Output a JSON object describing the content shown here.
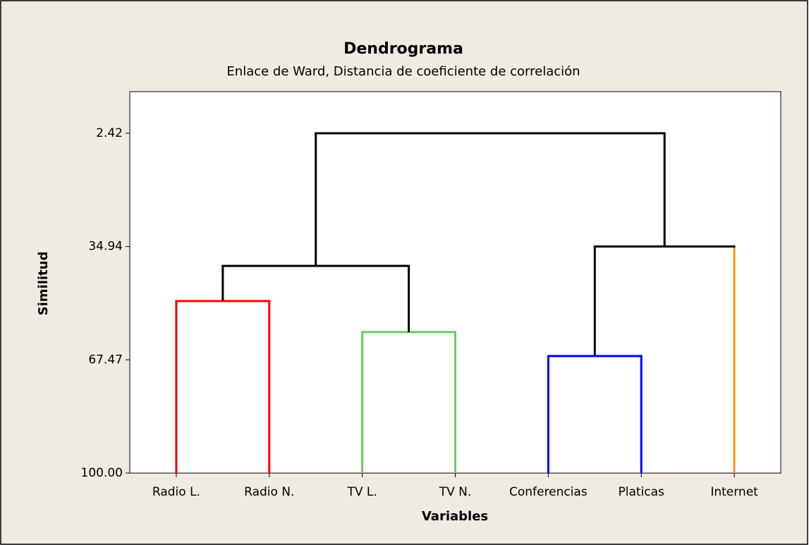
{
  "chart_data": {
    "type": "dendrogram",
    "title": "Dendrograma",
    "subtitle": "Enlace de Ward, Distancia de coeficiente de correlación",
    "x_label": "Variables",
    "y_label": "Similitud",
    "leaves": [
      "Radio L.",
      "Radio N.",
      "TV L.",
      "TV N.",
      "Conferencias",
      "Platicas",
      "Internet"
    ],
    "leaf_colors": [
      "#ff0000",
      "#ff0000",
      "#66cc66",
      "#66cc66",
      "#0000ff",
      "#0000ff",
      "#ff9900"
    ],
    "merges": [
      {
        "join": [
          0,
          1
        ],
        "similarity": 50.6,
        "color": "#ff0000"
      },
      {
        "join": [
          2,
          3
        ],
        "similarity": 59.5,
        "color": "#66cc66"
      },
      {
        "join": [
          4,
          5
        ],
        "similarity": 66.4,
        "color": "#0000ff"
      },
      {
        "join": [
          7,
          8
        ],
        "similarity": 40.5,
        "color": "#000000"
      },
      {
        "join": [
          9,
          6
        ],
        "similarity": 34.94,
        "color": "#000000"
      },
      {
        "join": [
          10,
          11
        ],
        "similarity": 2.42,
        "color": "#000000"
      }
    ],
    "ylim": [
      100,
      -9.52
    ],
    "yticks": [
      2.42,
      34.94,
      67.47,
      {
        "value": 100,
        "label": "100.00"
      }
    ]
  }
}
